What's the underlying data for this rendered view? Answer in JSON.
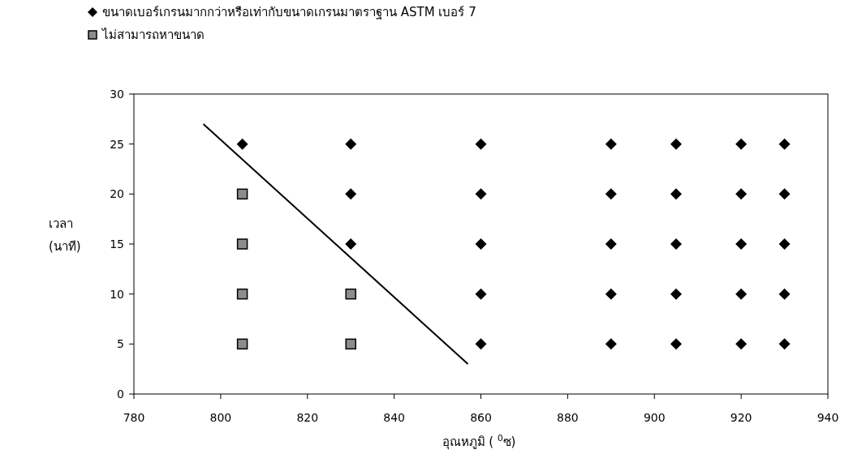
{
  "chart_data": {
    "type": "scatter",
    "xlabel": "อุณหภูมิ ( $^{0}$ซ)",
    "ylabel": "เวลา (นาที)",
    "xlim": [
      780,
      940
    ],
    "xticks": [
      780,
      800,
      820,
      840,
      860,
      880,
      900,
      920,
      940
    ],
    "ylim": [
      0,
      30
    ],
    "yticks": [
      0,
      5,
      10,
      15,
      20,
      25,
      30
    ],
    "legend": "top left",
    "series": [
      {
        "name": "ขนาดเบอร์เกรนมากกว่าหรือเท่ากับขนาดเกรนมาตราฐาน ASTM เบอร์ 7",
        "type": "scatter",
        "marker": "diamond",
        "color": "#000000",
        "x": [
          805,
          830,
          830,
          830,
          860,
          860,
          860,
          860,
          860,
          890,
          890,
          890,
          890,
          890,
          905,
          905,
          905,
          905,
          905,
          920,
          920,
          920,
          920,
          920,
          930,
          930,
          930,
          930,
          930
        ],
        "values": [
          25,
          25,
          20,
          15,
          25,
          20,
          15,
          10,
          5,
          25,
          20,
          15,
          10,
          5,
          25,
          20,
          15,
          10,
          5,
          25,
          20,
          15,
          10,
          5,
          25,
          20,
          15,
          10,
          5
        ]
      },
      {
        "name": "ไม่สามารถหาขนาด",
        "type": "scatter",
        "marker": "square",
        "color": "#8c8c8c",
        "x": [
          805,
          805,
          805,
          805,
          830,
          830
        ],
        "values": [
          20,
          15,
          10,
          5,
          10,
          5
        ]
      },
      {
        "type": "line",
        "marker": "none",
        "color": "#000000",
        "x": [
          796,
          857
        ],
        "values": [
          27,
          3
        ]
      }
    ]
  }
}
